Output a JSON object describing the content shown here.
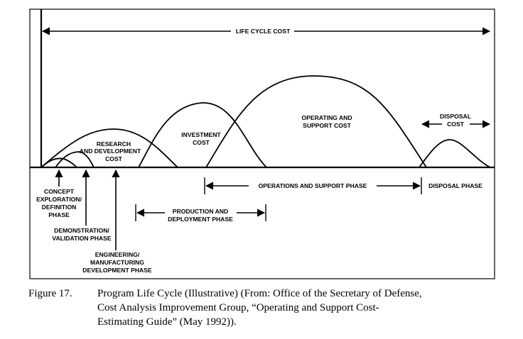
{
  "diagram": {
    "life_cycle_cost": "LIFE CYCLE COST",
    "curves": {
      "research": [
        "RESEARCH",
        "AND DEVELOPMENT",
        "COST"
      ],
      "investment": [
        "INVESTMENT",
        "COST"
      ],
      "operating": [
        "OPERATING AND",
        "SUPPORT COST"
      ],
      "disposal": [
        "DISPOSAL",
        "COST"
      ]
    },
    "phases": {
      "concept": [
        "CONCEPT",
        "EXPLORATION/",
        "DEFINITION",
        "PHASE"
      ],
      "demonstration": [
        "DEMONSTRATION/",
        "VALIDATION PHASE"
      ],
      "engineering": [
        "ENGINEERING/",
        "MANUFACTURING",
        "DEVELOPMENT PHASE"
      ],
      "operations_support": "OPERATIONS AND SUPPORT PHASE",
      "disposal": "DISPOSAL PHASE",
      "production": [
        "PRODUCTION AND",
        "DEPLOYMENT PHASE"
      ]
    }
  },
  "caption": {
    "figure_number": "Figure 17.",
    "lines": [
      "Program Life Cycle (Illustrative) (From: Office of the Secretary of Defense,",
      "Cost Analysis Improvement Group, “Operating and Support Cost-",
      "Estimating Guide” (May 1992))."
    ]
  }
}
